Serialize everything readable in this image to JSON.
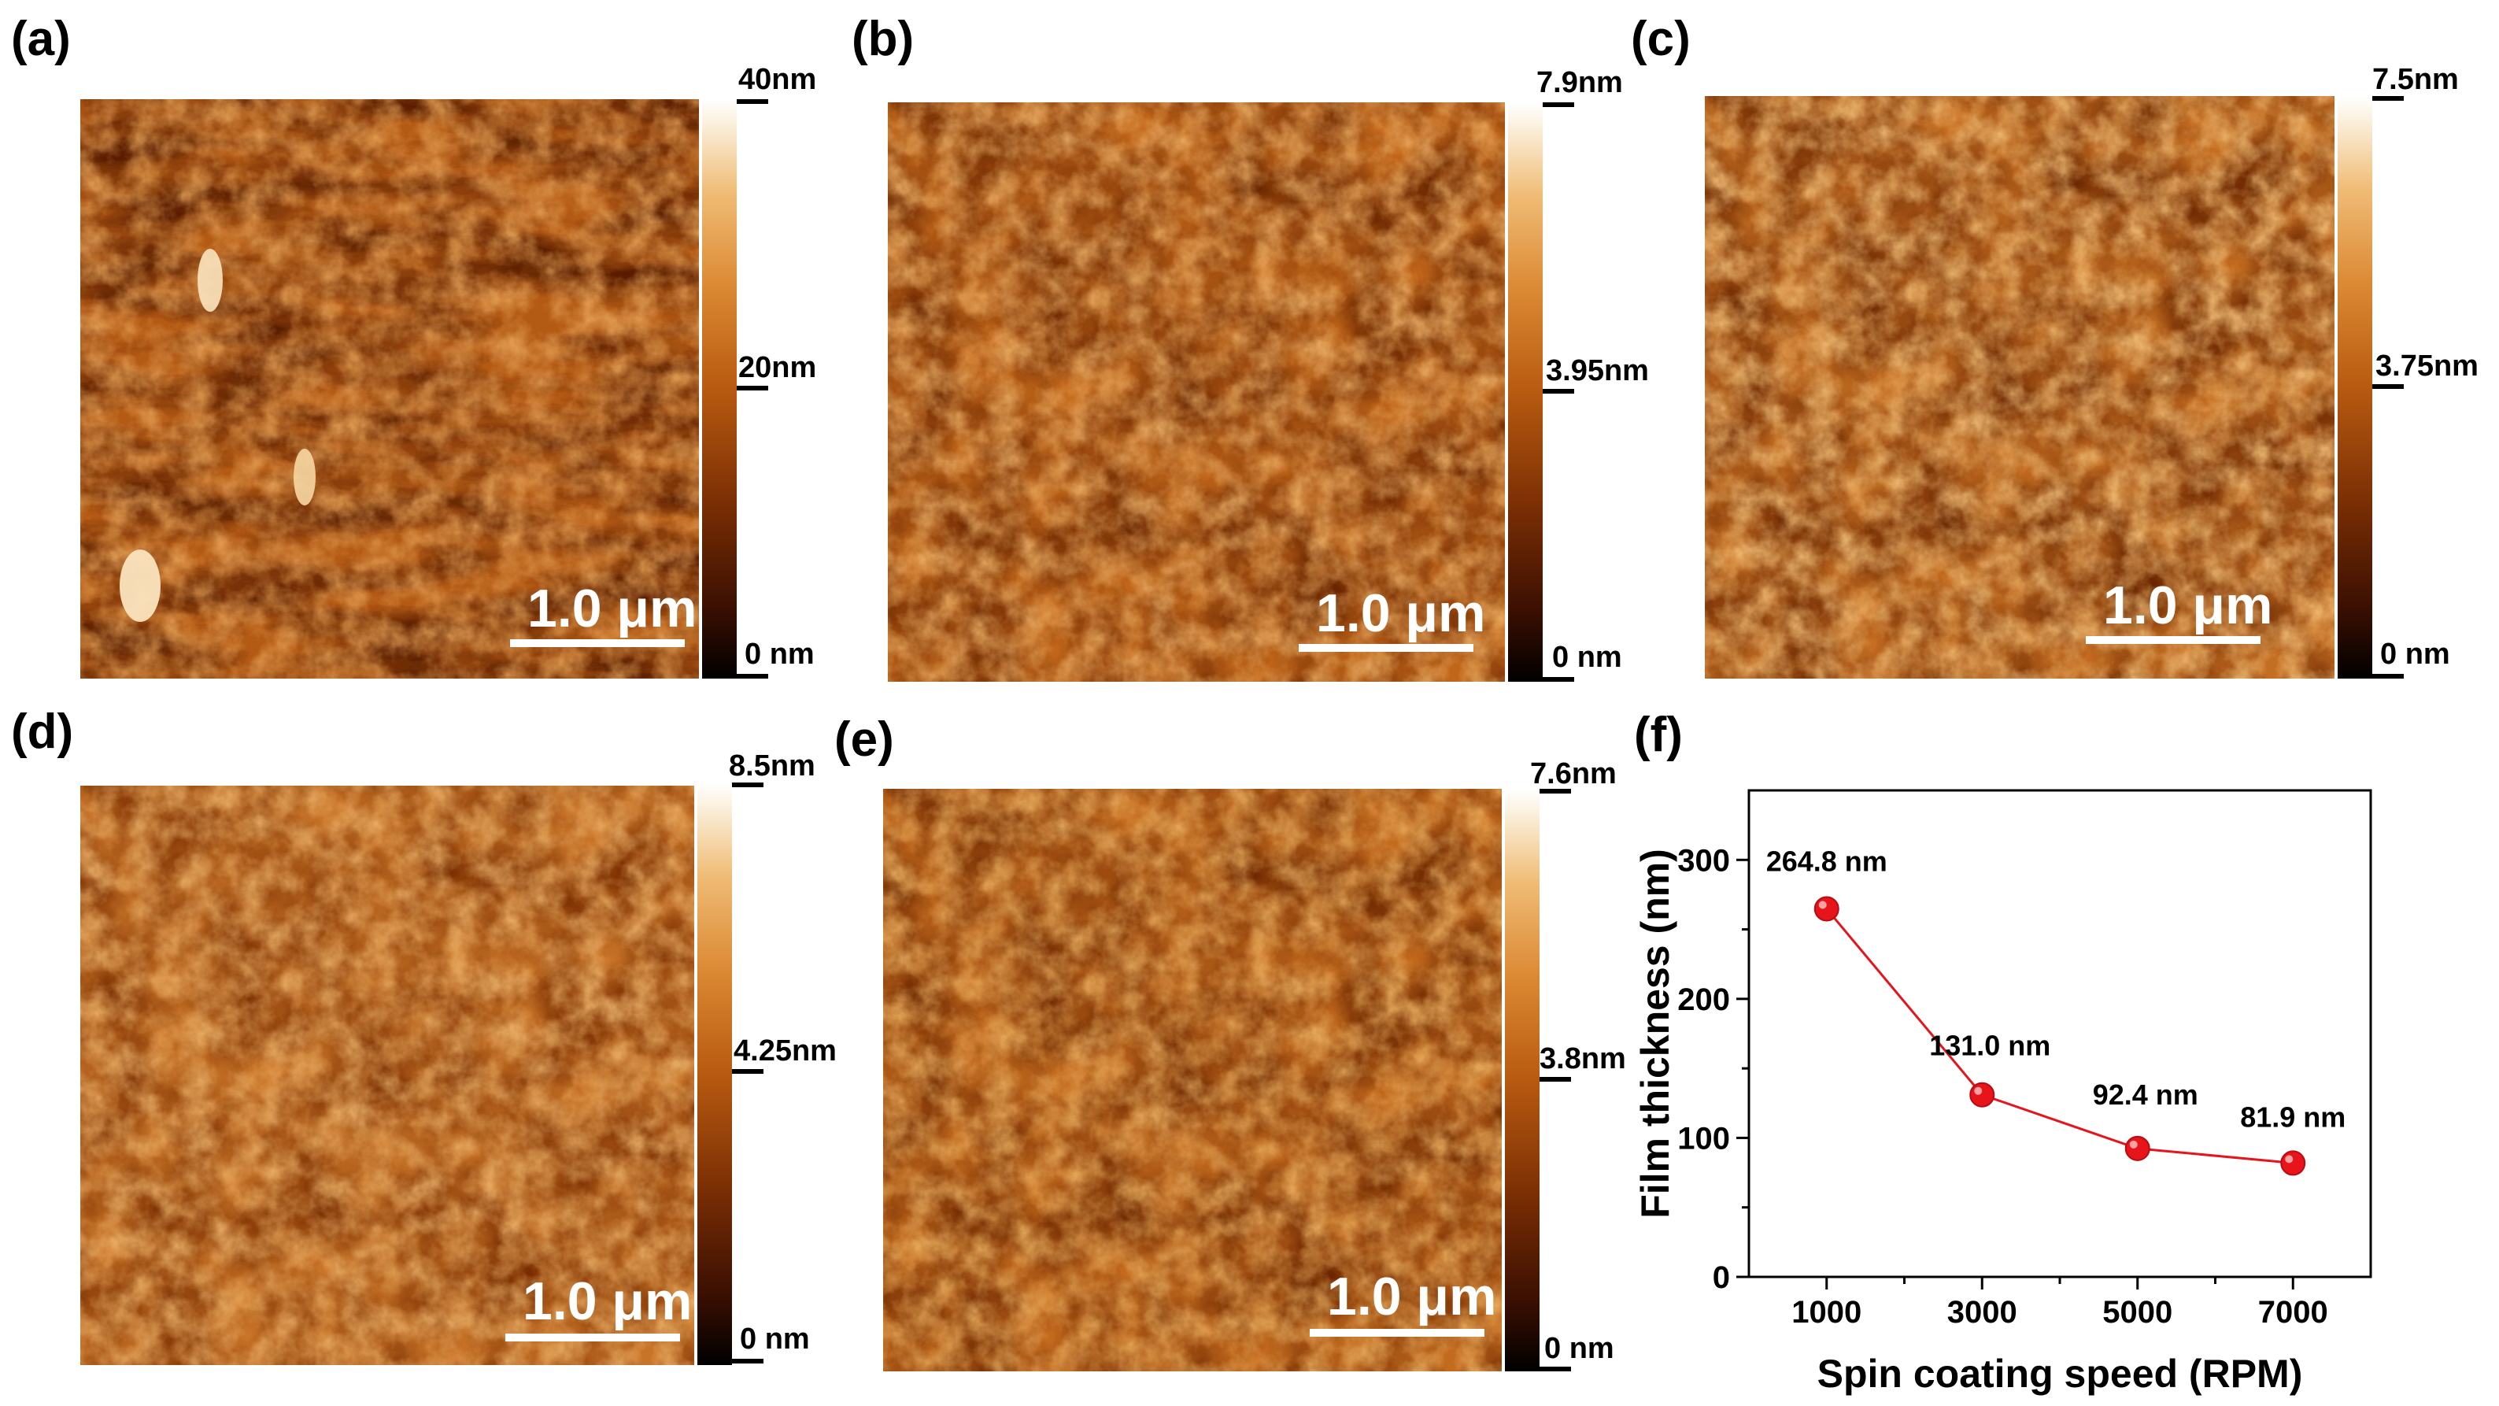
{
  "panels": {
    "a": {
      "label": "(a)",
      "scale_bar": "1.0 μm",
      "colorbar": {
        "max": "40nm",
        "mid": "20nm",
        "min": "0 nm"
      }
    },
    "b": {
      "label": "(b)",
      "scale_bar": "1.0 μm",
      "colorbar": {
        "max": "7.9nm",
        "mid": "3.95nm",
        "min": "0 nm"
      }
    },
    "c": {
      "label": "(c)",
      "scale_bar": "1.0 μm",
      "colorbar": {
        "max": "7.5nm",
        "mid": "3.75nm",
        "min": "0 nm"
      }
    },
    "d": {
      "label": "(d)",
      "scale_bar": "1.0 μm",
      "colorbar": {
        "max": "8.5nm",
        "mid": "4.25nm",
        "min": "0 nm"
      }
    },
    "e": {
      "label": "(e)",
      "scale_bar": "1.0 μm",
      "colorbar": {
        "max": "7.6nm",
        "mid": "3.8nm",
        "min": "0 nm"
      }
    },
    "f": {
      "label": "(f)"
    }
  },
  "chart_data": {
    "type": "line",
    "title": "",
    "xlabel": "Spin coating speed (RPM)",
    "ylabel": "Film thickness (nm)",
    "x": [
      1000,
      3000,
      5000,
      7000
    ],
    "xticks": [
      "1000",
      "3000",
      "5000",
      "7000"
    ],
    "xlim": [
      0,
      8000
    ],
    "ylim": [
      0,
      350
    ],
    "yticks": [
      "0",
      "100",
      "200",
      "300"
    ],
    "grid": false,
    "series": [
      {
        "name": "Film thickness",
        "values": [
          264.8,
          131.0,
          92.4,
          81.9
        ],
        "labels": [
          "264.8 nm",
          "131.0 nm",
          "92.4 nm",
          "81.9 nm"
        ],
        "color": "#e8141c"
      }
    ]
  },
  "colors": {
    "marker": "#e8141c",
    "afm_dark": "#5a1e02",
    "afm_mid": "#c0661a",
    "afm_light": "#f4c27a"
  }
}
